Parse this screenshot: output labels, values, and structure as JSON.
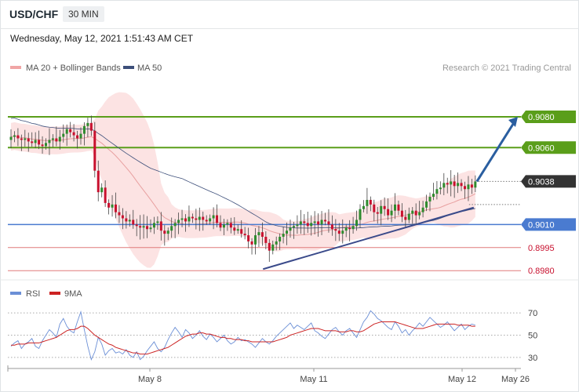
{
  "header": {
    "symbol": "USD/CHF",
    "interval": "30 MIN",
    "datetime": "Wednesday, May 12, 2021 1:51:43 AM CET"
  },
  "legend": {
    "ma20": "MA 20 + Bollinger Bands",
    "ma50": "MA 50",
    "rsi": "RSI",
    "ma9": "9MA"
  },
  "credit": "Research © 2021 Trading Central",
  "colors": {
    "up_candle": "#2e8b2e",
    "down_candle": "#c8102e",
    "bollinger_fill": "#fcdede",
    "ma20": "#e8a0a0",
    "ma50": "#3d4f7a",
    "resistance": "#5a9e1a",
    "current_tag": "#333333",
    "pivot": "#4a7bd0",
    "support": "#e07a7a",
    "trendline": "#3a4a8a",
    "arrow": "#2a5ea0",
    "rsi": "#6b8fd6",
    "rsi_ma": "#cc2222"
  },
  "chart_data": [
    {
      "type": "candlestick",
      "title": "USD/CHF 30 MIN",
      "x_axis_labels": [
        "May 8",
        "May 11",
        "May 12",
        "May 26"
      ],
      "price_levels": [
        {
          "value": 0.908,
          "label": "0.9080",
          "kind": "resistance"
        },
        {
          "value": 0.906,
          "label": "0.9060",
          "kind": "resistance"
        },
        {
          "value": 0.9038,
          "label": "0.9038",
          "kind": "current"
        },
        {
          "value": 0.901,
          "label": "0.9010",
          "kind": "pivot"
        },
        {
          "value": 0.8995,
          "label": "0.8995",
          "kind": "support"
        },
        {
          "value": 0.898,
          "label": "0.8980",
          "kind": "support"
        }
      ],
      "ylim": [
        0.8975,
        0.9105
      ],
      "closes": [
        0.9067,
        0.9068,
        0.9066,
        0.9065,
        0.9066,
        0.9064,
        0.9063,
        0.9065,
        0.9062,
        0.9061,
        0.9063,
        0.9065,
        0.9066,
        0.9064,
        0.9067,
        0.9069,
        0.9072,
        0.907,
        0.9068,
        0.9066,
        0.9069,
        0.9074,
        0.9076,
        0.9071,
        0.9045,
        0.9031,
        0.9034,
        0.9024,
        0.9021,
        0.9023,
        0.9018,
        0.9016,
        0.9014,
        0.9012,
        0.9013,
        0.901,
        0.9009,
        0.9008,
        0.9009,
        0.9007,
        0.9008,
        0.9011,
        0.9012,
        0.9006,
        0.9004,
        0.9006,
        0.9009,
        0.9011,
        0.9013,
        0.9014,
        0.9012,
        0.9015,
        0.9014,
        0.9013,
        0.9015,
        0.9013,
        0.9012,
        0.9014,
        0.9016,
        0.9011,
        0.9008,
        0.901,
        0.9011,
        0.9008,
        0.9006,
        0.9007,
        0.9004,
        0.9003,
        0.8999,
        0.8997,
        0.9003,
        0.9005,
        0.9002,
        0.8998,
        0.8993,
        0.8997,
        0.8999,
        0.9002,
        0.9004,
        0.9006,
        0.9008,
        0.9009,
        0.901,
        0.9012,
        0.9011,
        0.9009,
        0.9011,
        0.9012,
        0.901,
        0.9013,
        0.9012,
        0.901,
        0.9007,
        0.9006,
        0.9004,
        0.9006,
        0.9008,
        0.9007,
        0.9009,
        0.9013,
        0.902,
        0.9022,
        0.9026,
        0.9023,
        0.9018,
        0.9017,
        0.9022,
        0.902,
        0.9016,
        0.9019,
        0.9023,
        0.9019,
        0.9015,
        0.9013,
        0.9017,
        0.9019,
        0.9016,
        0.9018,
        0.9021,
        0.9025,
        0.9028,
        0.903,
        0.9033,
        0.9034,
        0.9037,
        0.9036,
        0.9038,
        0.9035,
        0.9037,
        0.9035,
        0.9033,
        0.9036,
        0.9034,
        0.9038
      ],
      "rsi": {
        "ylim": [
          20,
          80
        ],
        "ticks": [
          30,
          50,
          70
        ],
        "values": [
          40,
          43,
          45,
          38,
          42,
          44,
          47,
          40,
          38,
          45,
          50,
          55,
          52,
          48,
          60,
          65,
          58,
          54,
          52,
          62,
          71,
          55,
          40,
          28,
          35,
          48,
          42,
          32,
          36,
          38,
          34,
          35,
          33,
          37,
          32,
          30,
          35,
          28,
          31,
          36,
          40,
          44,
          38,
          35,
          39,
          46,
          52,
          57,
          53,
          48,
          55,
          52,
          47,
          50,
          54,
          49,
          46,
          51,
          48,
          44,
          47,
          50,
          45,
          42,
          44,
          48,
          45,
          46,
          44,
          42,
          39,
          43,
          47,
          44,
          42,
          45,
          49,
          52,
          55,
          58,
          61,
          56,
          59,
          57,
          55,
          58,
          61,
          54,
          52,
          49,
          47,
          51,
          55,
          57,
          53,
          50,
          54,
          56,
          52,
          48,
          55,
          62,
          66,
          72,
          69,
          65,
          63,
          60,
          57,
          55,
          62,
          58,
          52,
          55,
          50,
          54,
          57,
          61,
          58,
          62,
          66,
          63,
          60,
          57,
          59,
          62,
          58,
          54,
          57,
          60,
          55,
          58,
          60,
          59
        ],
        "ma_values": [
          41,
          41,
          42,
          42,
          42,
          43,
          43,
          43,
          43,
          44,
          45,
          46,
          47,
          48,
          50,
          52,
          54,
          55,
          55,
          56,
          58,
          58,
          56,
          53,
          50,
          48,
          46,
          44,
          42,
          41,
          39,
          38,
          37,
          36,
          35,
          34,
          34,
          33,
          33,
          33,
          34,
          35,
          36,
          37,
          38,
          39,
          41,
          43,
          45,
          47,
          49,
          50,
          51,
          51,
          52,
          52,
          51,
          51,
          50,
          49,
          48,
          48,
          47,
          47,
          46,
          46,
          46,
          45,
          45,
          44,
          44,
          44,
          44,
          44,
          44,
          44,
          45,
          46,
          47,
          48,
          50,
          51,
          52,
          53,
          54,
          55,
          56,
          56,
          56,
          55,
          54,
          54,
          54,
          54,
          53,
          53,
          53,
          54,
          54,
          53,
          53,
          54,
          56,
          58,
          60,
          61,
          62,
          62,
          62,
          62,
          62,
          61,
          60,
          59,
          58,
          57,
          56,
          56,
          56,
          57,
          58,
          59,
          60,
          60,
          60,
          60,
          60,
          60,
          59,
          59,
          59,
          59,
          58,
          58
        ]
      }
    }
  ]
}
